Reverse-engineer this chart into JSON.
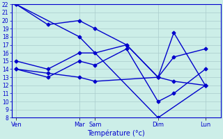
{
  "background_color": "#cceee8",
  "grid_color": "#aacccc",
  "line_color": "#0000cc",
  "marker": "D",
  "markersize": 2.5,
  "linewidth": 1.0,
  "xlabel": "Température (°c)",
  "ylim": [
    8,
    22
  ],
  "yticks": [
    8,
    9,
    10,
    11,
    12,
    13,
    14,
    15,
    16,
    17,
    18,
    19,
    20,
    21,
    22
  ],
  "xtick_positions": [
    0,
    4,
    5,
    9,
    12
  ],
  "xtick_labels": [
    "Ven",
    "Mar",
    "Sam",
    "Dim",
    "Lun"
  ],
  "xlim": [
    -0.3,
    13
  ],
  "series": [
    {
      "x": [
        0,
        4,
        9,
        12
      ],
      "y": [
        22.0,
        18.0,
        8.0,
        12.0
      ]
    },
    {
      "x": [
        0,
        2,
        4,
        5,
        7,
        9,
        10,
        12
      ],
      "y": [
        15.0,
        14.0,
        16.0,
        16.0,
        17.0,
        13.0,
        15.5,
        16.5
      ]
    },
    {
      "x": [
        0,
        2,
        4,
        5,
        9,
        10,
        12
      ],
      "y": [
        14.0,
        13.5,
        13.0,
        12.5,
        13.0,
        12.5,
        12.0
      ]
    },
    {
      "x": [
        0,
        2,
        4,
        5,
        7,
        9,
        10,
        12
      ],
      "y": [
        14.0,
        13.0,
        15.0,
        14.5,
        16.5,
        10.0,
        11.0,
        14.0
      ]
    },
    {
      "x": [
        0,
        2,
        4,
        5,
        7,
        9,
        10,
        12
      ],
      "y": [
        22.0,
        19.5,
        20.0,
        19.0,
        17.0,
        13.0,
        18.5,
        12.0
      ]
    }
  ]
}
